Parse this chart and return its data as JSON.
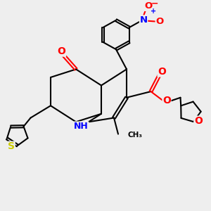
{
  "bg_color": "#eeeeee",
  "bond_color": "#000000",
  "bond_width": 1.5,
  "N_color": "#0000ff",
  "O_color": "#ff0000",
  "S_color": "#cccc00",
  "font_size_atom": 8.5,
  "fig_width": 3.0,
  "fig_height": 3.0,
  "dpi": 100,
  "xlim": [
    0,
    10
  ],
  "ylim": [
    0,
    10
  ]
}
